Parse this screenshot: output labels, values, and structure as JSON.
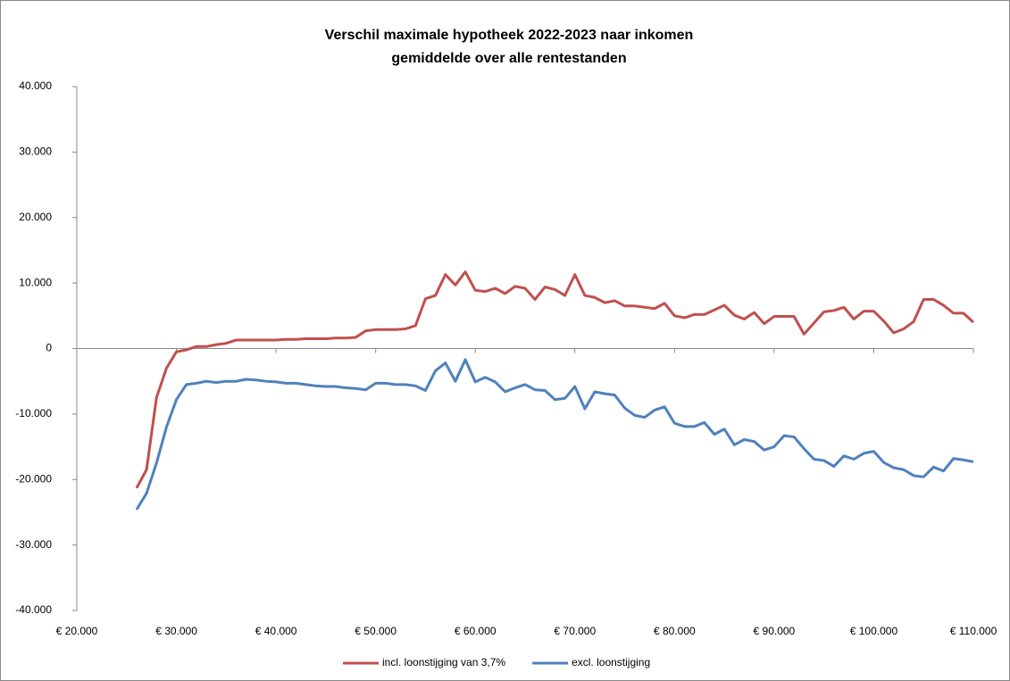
{
  "chart_data": {
    "type": "line",
    "title": "Verschil maximale hypotheek 2022-2023 naar inkomen",
    "subtitle": "gemiddelde over alle rentestanden",
    "x": [
      26000,
      27000,
      28000,
      29000,
      30000,
      31000,
      32000,
      33000,
      34000,
      35000,
      36000,
      37000,
      38000,
      39000,
      40000,
      41000,
      42000,
      43000,
      44000,
      45000,
      46000,
      47000,
      48000,
      49000,
      50000,
      51000,
      52000,
      53000,
      54000,
      55000,
      56000,
      57000,
      58000,
      59000,
      60000,
      61000,
      62000,
      63000,
      64000,
      65000,
      66000,
      67000,
      68000,
      69000,
      70000,
      71000,
      72000,
      73000,
      74000,
      75000,
      76000,
      77000,
      78000,
      79000,
      80000,
      81000,
      82000,
      83000,
      84000,
      85000,
      86000,
      87000,
      88000,
      89000,
      90000,
      91000,
      92000,
      93000,
      94000,
      95000,
      96000,
      97000,
      98000,
      99000,
      100000,
      101000,
      102000,
      103000,
      104000,
      105000,
      106000,
      107000,
      108000,
      109000,
      110000
    ],
    "series": [
      {
        "name": "incl. loonstijging van 3,7%",
        "color": "#c0504d",
        "values": [
          -21300,
          -18500,
          -7500,
          -3000,
          -500,
          -200,
          300,
          300,
          600,
          800,
          1300,
          1300,
          1300,
          1300,
          1300,
          1400,
          1400,
          1500,
          1500,
          1500,
          1600,
          1600,
          1700,
          2700,
          2900,
          2900,
          2900,
          3000,
          3500,
          7600,
          8100,
          11300,
          9700,
          11700,
          8900,
          8700,
          9200,
          8400,
          9500,
          9200,
          7500,
          9400,
          9000,
          8100,
          11300,
          8100,
          7800,
          7000,
          7300,
          6500,
          6500,
          6300,
          6100,
          6900,
          5000,
          4700,
          5200,
          5200,
          5900,
          6600,
          5100,
          4500,
          5500,
          3800,
          4900,
          4900,
          4900,
          2200,
          3900,
          5600,
          5800,
          6300,
          4500,
          5700,
          5700,
          4200,
          2400,
          3000,
          4100,
          7500,
          7500,
          6600,
          5400,
          5400,
          4000
        ]
      },
      {
        "name": "excl. loonstijging",
        "color": "#4f81bd",
        "values": [
          -24600,
          -22100,
          -17500,
          -12000,
          -7800,
          -5500,
          -5300,
          -5000,
          -5200,
          -5000,
          -5000,
          -4700,
          -4800,
          -5000,
          -5100,
          -5300,
          -5300,
          -5500,
          -5700,
          -5800,
          -5800,
          -6000,
          -6100,
          -6300,
          -5300,
          -5300,
          -5500,
          -5500,
          -5700,
          -6400,
          -3400,
          -2200,
          -5000,
          -1700,
          -5100,
          -4400,
          -5100,
          -6600,
          -6000,
          -5500,
          -6300,
          -6400,
          -7800,
          -7600,
          -5800,
          -9200,
          -6600,
          -6900,
          -7100,
          -9100,
          -10200,
          -10500,
          -9400,
          -8900,
          -11400,
          -11900,
          -11900,
          -11300,
          -13100,
          -12300,
          -14700,
          -13900,
          -14200,
          -15500,
          -15000,
          -13300,
          -13500,
          -15300,
          -16900,
          -17100,
          -18000,
          -16400,
          -16900,
          -16000,
          -15700,
          -17400,
          -18200,
          -18500,
          -19400,
          -19600,
          -18100,
          -18700,
          -16800,
          -17000,
          -17300
        ]
      }
    ],
    "xlim": [
      20000,
      110000
    ],
    "xticks": [
      {
        "value": 20000,
        "label": "€ 20.000"
      },
      {
        "value": 30000,
        "label": "€ 30.000"
      },
      {
        "value": 40000,
        "label": "€ 40.000"
      },
      {
        "value": 50000,
        "label": "€ 50.000"
      },
      {
        "value": 60000,
        "label": "€ 60.000"
      },
      {
        "value": 70000,
        "label": "€ 70.000"
      },
      {
        "value": 80000,
        "label": "€ 80.000"
      },
      {
        "value": 90000,
        "label": "€ 90.000"
      },
      {
        "value": 100000,
        "label": "€ 100.000"
      },
      {
        "value": 110000,
        "label": "€ 110.000"
      }
    ],
    "ylim": [
      -40000,
      40000
    ],
    "yticks": [
      {
        "value": -40000,
        "label": "-40.000"
      },
      {
        "value": -30000,
        "label": "-30.000"
      },
      {
        "value": -20000,
        "label": "-20.000"
      },
      {
        "value": -10000,
        "label": "-10.000"
      },
      0,
      {
        "value": 10000,
        "label": "10.000"
      },
      {
        "value": 20000,
        "label": "20.000"
      },
      {
        "value": 30000,
        "label": "30.000"
      },
      {
        "value": 40000,
        "label": "40.000"
      }
    ],
    "legend": "bottom"
  }
}
